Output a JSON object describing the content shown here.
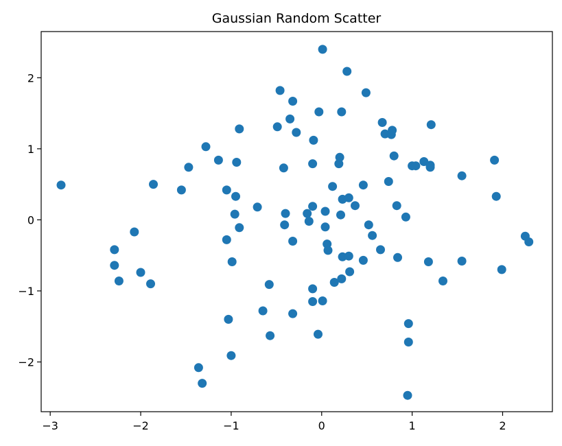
{
  "chart_data": {
    "type": "scatter",
    "title": "Gaussian Random Scatter",
    "xlabel": "",
    "ylabel": "",
    "xlim": [
      -3.1,
      2.55
    ],
    "ylim": [
      -2.7,
      2.65
    ],
    "xticks": [
      -3,
      -2,
      -1,
      0,
      1,
      2
    ],
    "yticks": [
      -2,
      -1,
      0,
      1,
      2
    ],
    "xtick_labels": [
      "−3",
      "−2",
      "−1",
      "0",
      "1",
      "2"
    ],
    "ytick_labels": [
      "−2",
      "−1",
      "0",
      "1",
      "2"
    ],
    "grid": false,
    "legend": "none",
    "marker_color": "#1f77b4",
    "points": [
      [
        -2.88,
        0.49
      ],
      [
        -2.29,
        -0.42
      ],
      [
        -2.29,
        -0.64
      ],
      [
        -2.24,
        -0.86
      ],
      [
        -2.07,
        -0.17
      ],
      [
        -2.0,
        -0.74
      ],
      [
        -1.89,
        -0.9
      ],
      [
        -1.86,
        0.5
      ],
      [
        -1.55,
        0.42
      ],
      [
        -1.47,
        0.74
      ],
      [
        -1.36,
        -2.08
      ],
      [
        -1.32,
        -2.3
      ],
      [
        -1.28,
        1.03
      ],
      [
        -1.14,
        0.84
      ],
      [
        -1.05,
        0.42
      ],
      [
        -1.05,
        -0.28
      ],
      [
        -1.03,
        -1.4
      ],
      [
        -1.0,
        -1.91
      ],
      [
        -0.99,
        -0.59
      ],
      [
        -0.96,
        0.08
      ],
      [
        -0.95,
        0.33
      ],
      [
        -0.94,
        0.81
      ],
      [
        -0.91,
        1.28
      ],
      [
        -0.91,
        -0.11
      ],
      [
        -0.71,
        0.18
      ],
      [
        -0.65,
        -1.28
      ],
      [
        -0.58,
        -0.91
      ],
      [
        -0.57,
        -1.63
      ],
      [
        -0.49,
        1.31
      ],
      [
        -0.46,
        1.82
      ],
      [
        -0.42,
        0.73
      ],
      [
        -0.41,
        -0.07
      ],
      [
        -0.4,
        0.09
      ],
      [
        -0.35,
        1.42
      ],
      [
        -0.32,
        1.67
      ],
      [
        -0.32,
        -0.3
      ],
      [
        -0.32,
        -1.32
      ],
      [
        -0.28,
        1.23
      ],
      [
        -0.16,
        0.09
      ],
      [
        -0.14,
        -0.02
      ],
      [
        -0.1,
        0.19
      ],
      [
        -0.1,
        -0.97
      ],
      [
        -0.1,
        -1.15
      ],
      [
        -0.09,
        1.12
      ],
      [
        -0.1,
        0.79
      ],
      [
        -0.04,
        -1.61
      ],
      [
        -0.03,
        1.52
      ],
      [
        0.01,
        2.4
      ],
      [
        0.01,
        -1.14
      ],
      [
        0.04,
        0.12
      ],
      [
        0.04,
        -0.1
      ],
      [
        0.06,
        -0.34
      ],
      [
        0.07,
        -0.43
      ],
      [
        0.12,
        0.47
      ],
      [
        0.14,
        -0.88
      ],
      [
        0.19,
        0.79
      ],
      [
        0.2,
        0.88
      ],
      [
        0.21,
        0.07
      ],
      [
        0.22,
        -0.83
      ],
      [
        0.22,
        1.52
      ],
      [
        0.23,
        0.29
      ],
      [
        0.23,
        -0.52
      ],
      [
        0.28,
        2.09
      ],
      [
        0.3,
        0.31
      ],
      [
        0.3,
        -0.51
      ],
      [
        0.31,
        -0.73
      ],
      [
        0.37,
        0.2
      ],
      [
        0.46,
        0.49
      ],
      [
        0.46,
        -0.57
      ],
      [
        0.49,
        1.79
      ],
      [
        0.52,
        -0.07
      ],
      [
        0.56,
        -0.22
      ],
      [
        0.65,
        -0.42
      ],
      [
        0.67,
        1.37
      ],
      [
        0.7,
        1.21
      ],
      [
        0.74,
        0.54
      ],
      [
        0.77,
        1.2
      ],
      [
        0.78,
        1.26
      ],
      [
        0.8,
        0.9
      ],
      [
        0.83,
        0.2
      ],
      [
        0.84,
        -0.53
      ],
      [
        0.93,
        0.04
      ],
      [
        0.95,
        -2.47
      ],
      [
        0.96,
        -1.46
      ],
      [
        0.96,
        -1.72
      ],
      [
        1.0,
        0.76
      ],
      [
        1.04,
        0.76
      ],
      [
        1.13,
        0.82
      ],
      [
        1.18,
        -0.59
      ],
      [
        1.2,
        0.77
      ],
      [
        1.2,
        0.74
      ],
      [
        1.21,
        1.34
      ],
      [
        1.34,
        -0.86
      ],
      [
        1.55,
        0.62
      ],
      [
        1.55,
        -0.58
      ],
      [
        1.91,
        0.84
      ],
      [
        1.93,
        0.33
      ],
      [
        1.99,
        -0.7
      ],
      [
        2.25,
        -0.23
      ],
      [
        2.29,
        -0.31
      ]
    ]
  }
}
